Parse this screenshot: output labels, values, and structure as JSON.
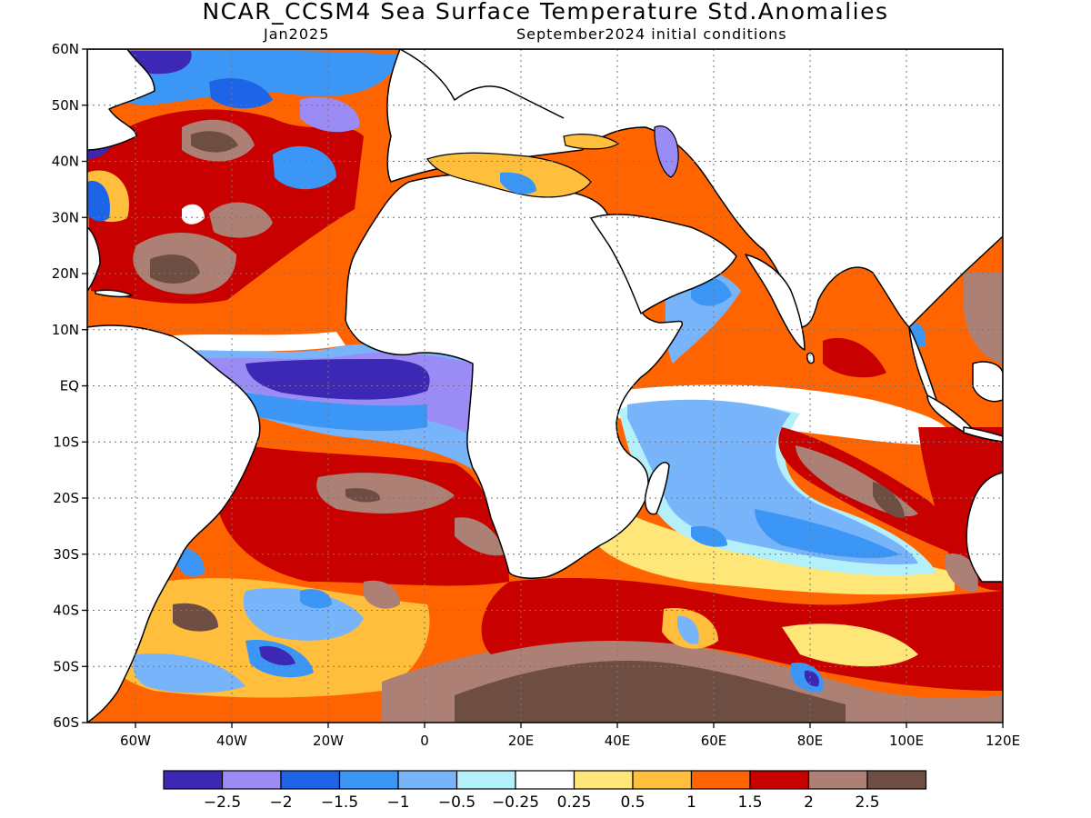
{
  "header": {
    "title": "NCAR_CCSM4 Sea Surface Temperature Std.Anomalies",
    "valid_month": "Jan2025",
    "initial_conditions": "September2024 initial conditions"
  },
  "map": {
    "lon_range": [
      -70,
      120
    ],
    "lat_range": [
      -60,
      60
    ],
    "lat_labels": [
      "60N",
      "50N",
      "40N",
      "30N",
      "20N",
      "10N",
      "EQ",
      "10S",
      "20S",
      "30S",
      "40S",
      "50S",
      "60S"
    ],
    "lon_labels": [
      "60W",
      "40W",
      "20W",
      "0",
      "20E",
      "40E",
      "60E",
      "80E",
      "100E",
      "120E"
    ],
    "land_color": "#ffffff",
    "gridlines": "dotted"
  },
  "colorbar": {
    "colors": [
      "#3c28b4",
      "#9b8cf5",
      "#1e64e6",
      "#3c96f5",
      "#78b4fa",
      "#b4f0fa",
      "#ffffff",
      "#ffe678",
      "#ffbe3c",
      "#ff6400",
      "#c80000",
      "#ac8074",
      "#6e4e42"
    ],
    "labels": [
      "−2.5",
      "−2",
      "−1.5",
      "−1",
      "−0.5",
      "−0.25",
      "0.25",
      "0.5",
      "1",
      "1.5",
      "2",
      "2.5"
    ]
  }
}
